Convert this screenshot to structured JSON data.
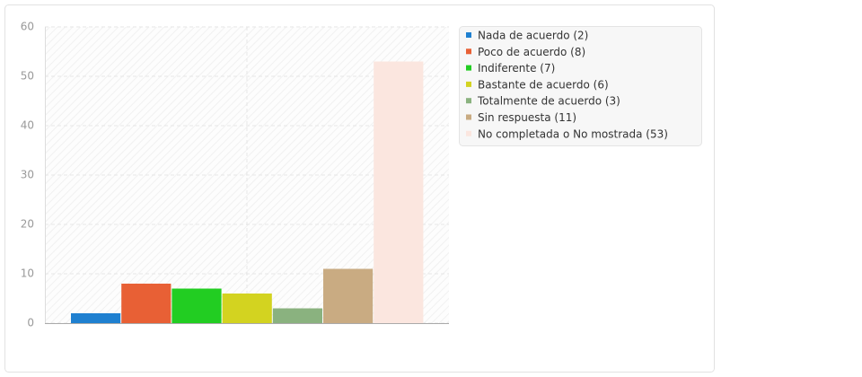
{
  "chart_data": {
    "type": "bar",
    "series": [
      {
        "name": "Nada de acuerdo (2)",
        "color": "#1f80d0",
        "values": [
          2
        ]
      },
      {
        "name": "Poco de acuerdo (8)",
        "color": "#e86035",
        "values": [
          8
        ]
      },
      {
        "name": "Indiferente (7)",
        "color": "#22cd22",
        "values": [
          7
        ]
      },
      {
        "name": "Bastante de acuerdo (6)",
        "color": "#d3d320",
        "values": [
          6
        ]
      },
      {
        "name": "Totalmente de acuerdo (3)",
        "color": "#8ab27f",
        "values": [
          3
        ]
      },
      {
        "name": "Sin respuesta (11)",
        "color": "#c9ab82",
        "values": [
          11
        ]
      },
      {
        "name": "No completada o No mostrada (53)",
        "color": "#fbe6df",
        "values": [
          53
        ]
      }
    ],
    "ylim": [
      0,
      60
    ],
    "yticks": [
      0,
      10,
      20,
      30,
      40,
      50,
      60
    ],
    "grid": true
  }
}
